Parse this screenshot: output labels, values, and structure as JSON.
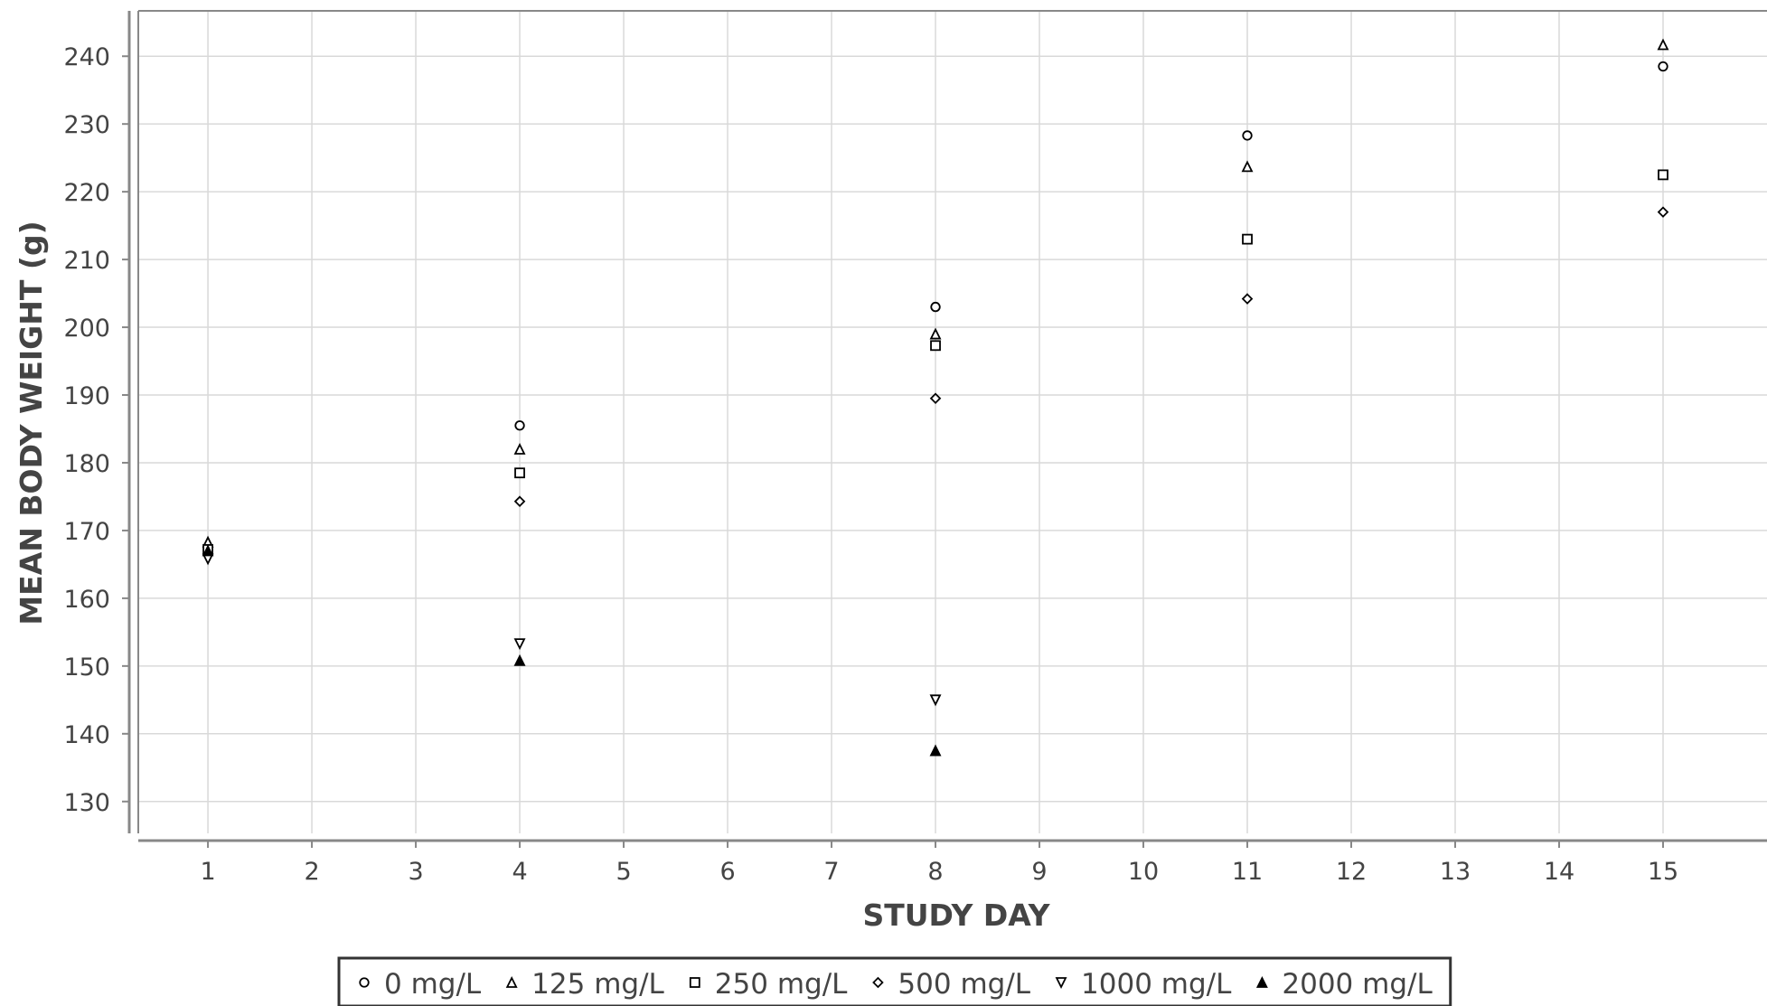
{
  "chart_data": {
    "type": "scatter",
    "title": "",
    "xlabel": "STUDY DAY",
    "ylabel": "MEAN BODY WEIGHT (g)",
    "xlim": [
      0.33,
      16.0
    ],
    "ylim": [
      125.3,
      246.7
    ],
    "x_ticks": [
      1,
      2,
      3,
      4,
      5,
      6,
      7,
      8,
      9,
      10,
      11,
      12,
      13,
      14,
      15
    ],
    "y_ticks": [
      130,
      140,
      150,
      160,
      170,
      180,
      190,
      200,
      210,
      220,
      230,
      240
    ],
    "grid": true,
    "legend_position": "bottom",
    "series": [
      {
        "name": "0 mg/L",
        "marker": "circle-open",
        "points": [
          [
            1,
            167.5
          ],
          [
            4,
            185.5
          ],
          [
            8,
            203
          ],
          [
            11,
            228.3
          ],
          [
            15,
            238.5
          ]
        ]
      },
      {
        "name": "125 mg/L",
        "marker": "triangle-up-open",
        "points": [
          [
            1,
            168.3
          ],
          [
            4,
            182
          ],
          [
            8,
            199
          ],
          [
            11,
            223.7
          ],
          [
            15,
            241.7
          ]
        ]
      },
      {
        "name": "250 mg/L",
        "marker": "square-open",
        "points": [
          [
            1,
            167.2
          ],
          [
            4,
            178.5
          ],
          [
            8,
            197.3
          ],
          [
            11,
            213
          ],
          [
            15,
            222.5
          ]
        ]
      },
      {
        "name": "500 mg/L",
        "marker": "diamond-open",
        "points": [
          [
            1,
            166.5
          ],
          [
            4,
            174.3
          ],
          [
            8,
            189.5
          ],
          [
            11,
            204.2
          ],
          [
            15,
            217
          ]
        ]
      },
      {
        "name": "1000 mg/L",
        "marker": "triangle-down-open",
        "points": [
          [
            1,
            165.8
          ],
          [
            4,
            153.3
          ],
          [
            8,
            145
          ]
        ]
      },
      {
        "name": "2000 mg/L",
        "marker": "triangle-up-filled",
        "points": [
          [
            1,
            167
          ],
          [
            4,
            150.8
          ],
          [
            8,
            137.5
          ]
        ]
      }
    ]
  }
}
